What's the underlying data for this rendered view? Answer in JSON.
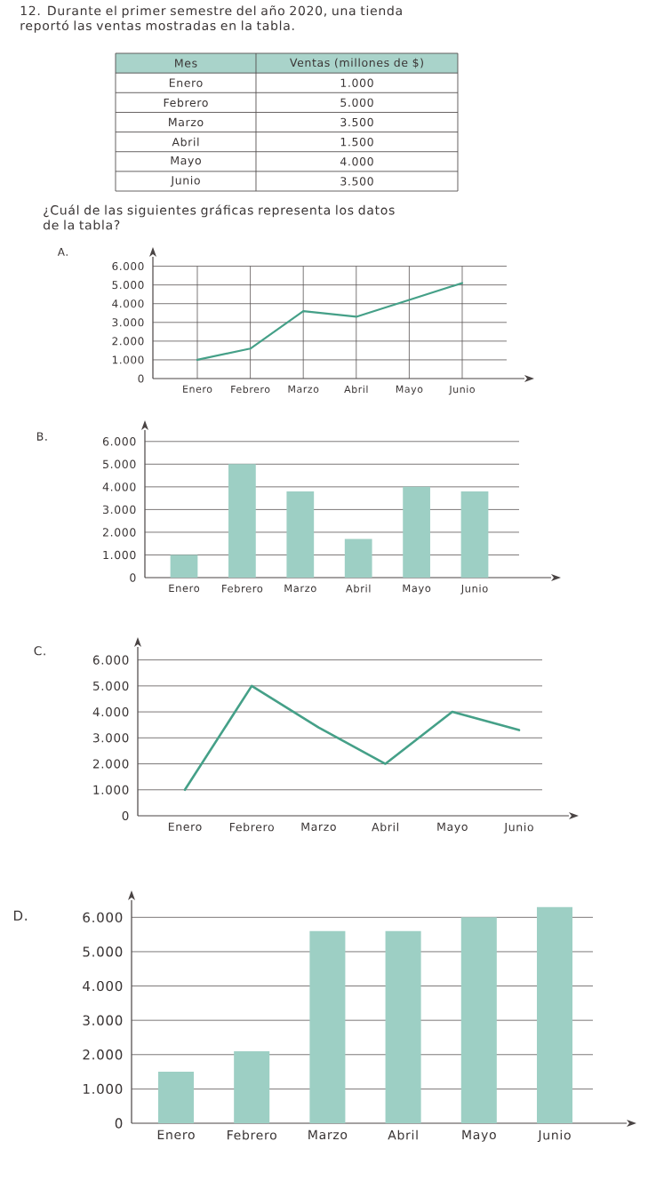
{
  "chart_data": [
    {
      "type": "other",
      "title": "12. Durante el primer semestre del año 2020, una tienda reportó las ventas mostradas en la tabla.",
      "xlabel": "Mes",
      "ylabel": "Ventas (millones de $)",
      "categories": [
        "Enero",
        "Febrero",
        "Marzo",
        "Abril",
        "Mayo",
        "Junio"
      ],
      "value_labels": [
        "1.000",
        "5.000",
        "3.500",
        "1.500",
        "4.000",
        "3.500"
      ],
      "annotations": [
        "¿Cuál de las siguientes gráficas representa los datos de la tabla?"
      ]
    },
    {
      "type": "line",
      "title": "A.",
      "categories": [
        "Enero",
        "Febrero",
        "Marzo",
        "Abril",
        "Mayo",
        "Junio"
      ],
      "values": [
        1000,
        1600,
        3600,
        3300,
        4200,
        5100
      ],
      "color": "#45a088",
      "ylim": [
        0,
        6500
      ],
      "yticks": [
        0,
        {
          "value": 1000,
          "label": "1.000"
        },
        {
          "value": 2000,
          "label": "2.000"
        },
        {
          "value": 3000,
          "label": "3.000"
        },
        {
          "value": 4000,
          "label": "4.000"
        },
        {
          "value": 5000,
          "label": "5.000"
        },
        {
          "value": 6000,
          "label": "6.000"
        }
      ],
      "grid": true
    },
    {
      "type": "bar",
      "title": "B.",
      "categories": [
        "Enero",
        "Febrero",
        "Marzo",
        "Abril",
        "Mayo",
        "Junio"
      ],
      "values": [
        1000,
        5000,
        3800,
        1700,
        4000,
        3800
      ],
      "color": "#9dcfc4",
      "ylim": [
        0,
        6500
      ],
      "yticks": [
        0,
        {
          "value": 1000,
          "label": "1.000"
        },
        {
          "value": 2000,
          "label": "2.000"
        },
        {
          "value": 3000,
          "label": "3.000"
        },
        {
          "value": 4000,
          "label": "4.000"
        },
        {
          "value": 5000,
          "label": "5.000"
        },
        {
          "value": 6000,
          "label": "6.000"
        }
      ],
      "grid": "y"
    },
    {
      "type": "line",
      "title": "C.",
      "categories": [
        "Enero",
        "Febrero",
        "Marzo",
        "Abril",
        "Mayo",
        "Junio"
      ],
      "values": [
        1000,
        5000,
        3400,
        2000,
        4000,
        3300
      ],
      "color": "#45a088",
      "ylim": [
        0,
        6500
      ],
      "yticks": [
        0,
        {
          "value": 1000,
          "label": "1.000"
        },
        {
          "value": 2000,
          "label": "2.000"
        },
        {
          "value": 3000,
          "label": "3.000"
        },
        {
          "value": 4000,
          "label": "4.000"
        },
        {
          "value": 5000,
          "label": "5.000"
        },
        {
          "value": 6000,
          "label": "6.000"
        }
      ],
      "grid": "y"
    },
    {
      "type": "bar",
      "title": "D.",
      "categories": [
        "Enero",
        "Febrero",
        "Marzo",
        "Abril",
        "Mayo",
        "Junio"
      ],
      "values": [
        1500,
        2100,
        5600,
        5600,
        6000,
        6300
      ],
      "color": "#9dcfc4",
      "ylim": [
        0,
        6500
      ],
      "yticks": [
        0,
        {
          "value": 1000,
          "label": "1.000"
        },
        {
          "value": 2000,
          "label": "2.000"
        },
        {
          "value": 3000,
          "label": "3.000"
        },
        {
          "value": 4000,
          "label": "4.000"
        },
        {
          "value": 5000,
          "label": "5.000"
        },
        {
          "value": 6000,
          "label": "6.000"
        }
      ],
      "grid": "y"
    }
  ]
}
